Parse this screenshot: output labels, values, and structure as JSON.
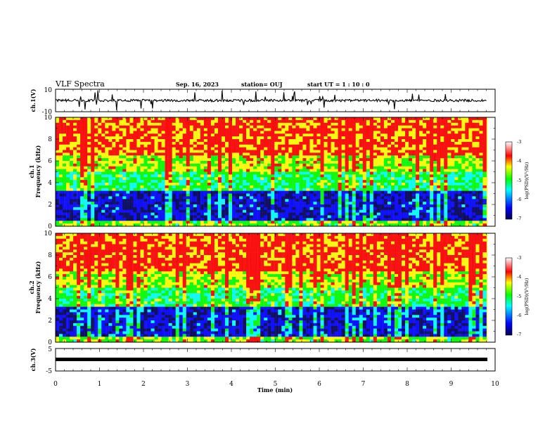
{
  "header": {
    "title": "VLF Spectra",
    "date": "Sep. 16, 2023",
    "station": "station= OUJ",
    "start_ut": "start  UT =  1 : 10 : 0"
  },
  "chart_data": [
    {
      "type": "line",
      "panel": "ch1-waveform",
      "ylabel": "ch.1(V)",
      "ylim": [
        -10,
        10
      ],
      "yticks": [
        "10",
        "-10"
      ],
      "xlim": [
        0,
        10
      ],
      "series": [
        {
          "x": [
            0,
            9.8
          ],
          "y": [
            0,
            0
          ]
        }
      ]
    },
    {
      "type": "heatmap",
      "panel": "ch1-spectrogram",
      "ylabel": "ch.1\nFrequency (kHz)",
      "ylim": [
        0,
        10
      ],
      "yticks": [
        "0",
        "2",
        "4",
        "6",
        "8",
        "10"
      ],
      "xlim": [
        0,
        10
      ],
      "data_end_min": 9.8,
      "colorbar": {
        "label": "log(PSD)(V²/Hz)",
        "range": [
          -7,
          -3
        ],
        "ticks": [
          "-3",
          "-4",
          "-5",
          "-6",
          "-7"
        ]
      }
    },
    {
      "type": "heatmap",
      "panel": "ch2-spectrogram",
      "ylabel": "ch.2\nFrequency (kHz)",
      "ylim": [
        0,
        10
      ],
      "yticks": [
        "0",
        "2",
        "4",
        "6",
        "8",
        "10"
      ],
      "xlim": [
        0,
        10
      ],
      "data_end_min": 9.8,
      "colorbar": {
        "label": "log(PSD)(V²/Hz)",
        "range": [
          -7,
          -3
        ],
        "ticks": [
          "-3",
          "-4",
          "-5",
          "-6",
          "-7"
        ]
      }
    },
    {
      "type": "line",
      "panel": "ch3-waveform",
      "ylabel": "ch.3(V)",
      "ylim": [
        -5,
        5
      ],
      "yticks": [
        "5",
        "-5"
      ],
      "xlim": [
        0,
        10
      ],
      "xlabel": "Time (min)",
      "xticks": [
        "0",
        "1",
        "2",
        "3",
        "4",
        "5",
        "6",
        "7",
        "8",
        "9",
        "10"
      ],
      "series": [
        {
          "x": [
            0,
            9.8
          ],
          "y": [
            0,
            0
          ]
        }
      ]
    }
  ],
  "colors": {
    "colormap": [
      "#00005a",
      "#0000ff",
      "#00ffff",
      "#00ff00",
      "#ffff00",
      "#ff0000",
      "#ff0000"
    ],
    "trace": "#000000"
  }
}
